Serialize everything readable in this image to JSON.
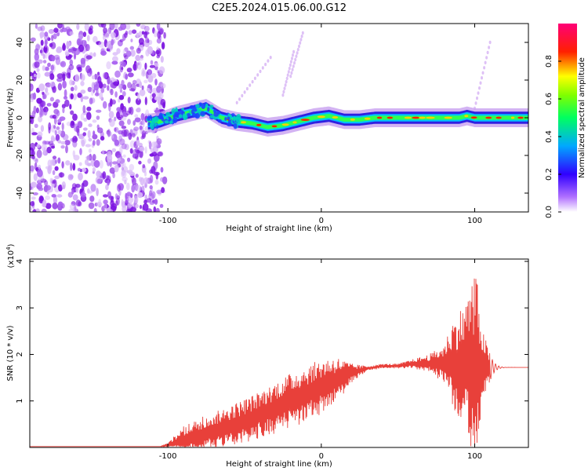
{
  "title": "C2E5.2024.015.06.00.G12",
  "chart_data": [
    {
      "type": "heatmap",
      "panel": "spectrogram",
      "xlabel": "Height of straight line (km)",
      "ylabel": "Frequency (Hz)",
      "xlim": [
        -190,
        135
      ],
      "ylim": [
        -50,
        50
      ],
      "x_ticks": [
        -100,
        0,
        100
      ],
      "y_ticks": [
        -40,
        -20,
        0,
        20,
        40
      ],
      "ridge": {
        "x": [
          -113,
          -105,
          -95,
          -85,
          -75,
          -65,
          -55,
          -45,
          -35,
          -25,
          -15,
          -5,
          5,
          15,
          25,
          35,
          50,
          65,
          80,
          90,
          95,
          100,
          110,
          120,
          135
        ],
        "y": [
          -3,
          -2,
          1,
          3,
          5,
          0,
          -2,
          -3,
          -5,
          -4,
          -2,
          0,
          1,
          -1,
          -1,
          0,
          0,
          0,
          0,
          0,
          1,
          0,
          0,
          0,
          0
        ]
      },
      "noise_region_x": [
        -190,
        -110
      ],
      "colorbar": {
        "label": "Normalized spectral amplitude",
        "ticks": [
          0.0,
          0.2,
          0.4,
          0.6,
          0.8
        ],
        "range": [
          0,
          1
        ],
        "colors": [
          "#ffffff",
          "#8a00ff",
          "#0000ff",
          "#00ffff",
          "#00ff00",
          "#ffff00",
          "#ff0000",
          "#ff0077"
        ]
      }
    },
    {
      "type": "line",
      "panel": "snr",
      "xlabel": "Height of straight line (km)",
      "ylabel": "SNR (10 * v/v)",
      "ylabel_exponent": "(x10",
      "ylabel_exponent_power": "4",
      "ylabel_exponent_close": ")",
      "xlim": [
        -190,
        135
      ],
      "ylim": [
        0,
        4.05
      ],
      "x_ticks": [
        -100,
        0,
        100
      ],
      "y_ticks": [
        1,
        2,
        3,
        4
      ],
      "color": "#e8403a",
      "envelope": {
        "x": [
          -190,
          -105,
          -100,
          -90,
          -80,
          -70,
          -60,
          -50,
          -40,
          -30,
          -20,
          -10,
          0,
          10,
          20,
          30,
          40,
          50,
          60,
          70,
          80,
          85,
          90,
          95,
          100,
          105,
          110,
          115,
          120,
          135
        ],
        "baseline": [
          0.02,
          0.02,
          0.05,
          0.15,
          0.25,
          0.35,
          0.45,
          0.55,
          0.7,
          0.85,
          1.0,
          1.15,
          1.3,
          1.45,
          1.6,
          1.7,
          1.75,
          1.75,
          1.8,
          1.8,
          1.8,
          1.8,
          1.75,
          1.75,
          1.75,
          1.75,
          1.72,
          1.72,
          1.72,
          1.72
        ],
        "amplitude": [
          0.0,
          0.0,
          0.05,
          0.3,
          0.4,
          0.4,
          0.45,
          0.5,
          0.5,
          0.55,
          0.6,
          0.6,
          0.6,
          0.5,
          0.2,
          0.05,
          0.05,
          0.05,
          0.1,
          0.2,
          0.4,
          0.9,
          1.2,
          1.5,
          2.3,
          0.8,
          0.3,
          0.15,
          0.03,
          0.03
        ]
      }
    }
  ]
}
